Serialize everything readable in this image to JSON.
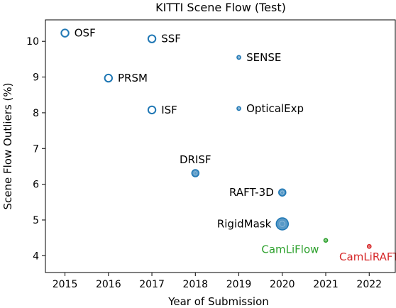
{
  "chart_data": {
    "type": "scatter",
    "title": "KITTI Scene Flow (Test)",
    "xlabel": "Year of Submission",
    "ylabel": "Scene Flow Outliers (%)",
    "xlim": [
      2014.55,
      2022.6
    ],
    "ylim": [
      3.53,
      10.6
    ],
    "xticks": [
      2015,
      2016,
      2017,
      2018,
      2019,
      2020,
      2021,
      2022
    ],
    "yticks": [
      4,
      5,
      6,
      7,
      8,
      9,
      10
    ],
    "grid": false,
    "legend": "none",
    "colors": {
      "default": "#1f77b4",
      "camliflow": "#2ca02c",
      "camliraft": "#d62728"
    },
    "points": [
      {
        "label": "OSF",
        "x": 2015,
        "y": 10.23,
        "marker": "ring",
        "size": "large",
        "color": "#1f77b4",
        "label_pos": "right"
      },
      {
        "label": "SSF",
        "x": 2017,
        "y": 10.07,
        "marker": "ring",
        "size": "large",
        "color": "#1f77b4",
        "label_pos": "right"
      },
      {
        "label": "SENSE",
        "x": 2019,
        "y": 9.55,
        "marker": "filled",
        "size": "small",
        "color": "#1f77b4",
        "label_pos": "right"
      },
      {
        "label": "PRSM",
        "x": 2016,
        "y": 8.97,
        "marker": "ring",
        "size": "large",
        "color": "#1f77b4",
        "label_pos": "right"
      },
      {
        "label": "ISF",
        "x": 2017,
        "y": 8.08,
        "marker": "ring",
        "size": "large",
        "color": "#1f77b4",
        "label_pos": "right"
      },
      {
        "label": "OpticalExp",
        "x": 2019,
        "y": 8.12,
        "marker": "filled",
        "size": "small",
        "color": "#1f77b4",
        "label_pos": "right"
      },
      {
        "label": "DRISF",
        "x": 2018,
        "y": 6.31,
        "marker": "filled",
        "size": "medium",
        "color": "#1f77b4",
        "label_pos": "above"
      },
      {
        "label": "RAFT-3D",
        "x": 2020,
        "y": 5.77,
        "marker": "filled",
        "size": "medium",
        "color": "#1f77b4",
        "label_pos": "left"
      },
      {
        "label": "RigidMask",
        "x": 2020,
        "y": 4.89,
        "marker": "filled",
        "size": "xlarge",
        "color": "#1f77b4",
        "label_pos": "left"
      },
      {
        "label": "CamLiFlow",
        "x": 2021,
        "y": 4.43,
        "marker": "filled",
        "size": "small",
        "color": "#2ca02c",
        "label_pos": "below-left"
      },
      {
        "label": "CamLiRAFT",
        "x": 2022,
        "y": 4.26,
        "marker": "filled",
        "size": "small",
        "color": "#d62728",
        "label_pos": "below"
      }
    ]
  }
}
